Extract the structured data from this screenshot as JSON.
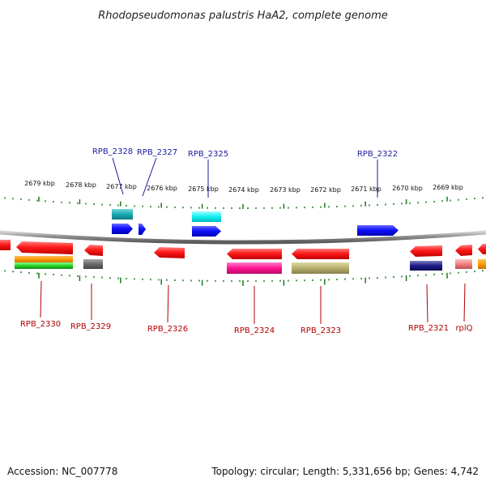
{
  "title": "Rhodopseudomonas palustris HaA2, complete genome",
  "footer": {
    "accession": "Accession: NC_007778",
    "stats": "Topology: circular; Length: 5,331,656 bp; Genes: 4,742"
  },
  "colors": {
    "top_label": "#1a1aa0",
    "bottom_label": "#b00000",
    "tick": "#1a7a1a",
    "backbone": "#8a8a8a"
  },
  "ticks": {
    "top": [
      "2679 kbp",
      "2678 kbp",
      "2677 kbp",
      "2676 kbp",
      "2675 kbp",
      "2674 kbp",
      "2673 kbp",
      "2672 kbp",
      "2671 kbp",
      "2670 kbp",
      "2669 kbp"
    ]
  },
  "top_labels": [
    "RPB_2328",
    "RPB_2327",
    "RPB_2325",
    "RPB_2322"
  ],
  "bottom_labels": [
    "RPB_2330",
    "RPB_2329",
    "RPB_2326",
    "RPB_2324",
    "RPB_2323",
    "RPB_2321",
    "rplQ"
  ]
}
